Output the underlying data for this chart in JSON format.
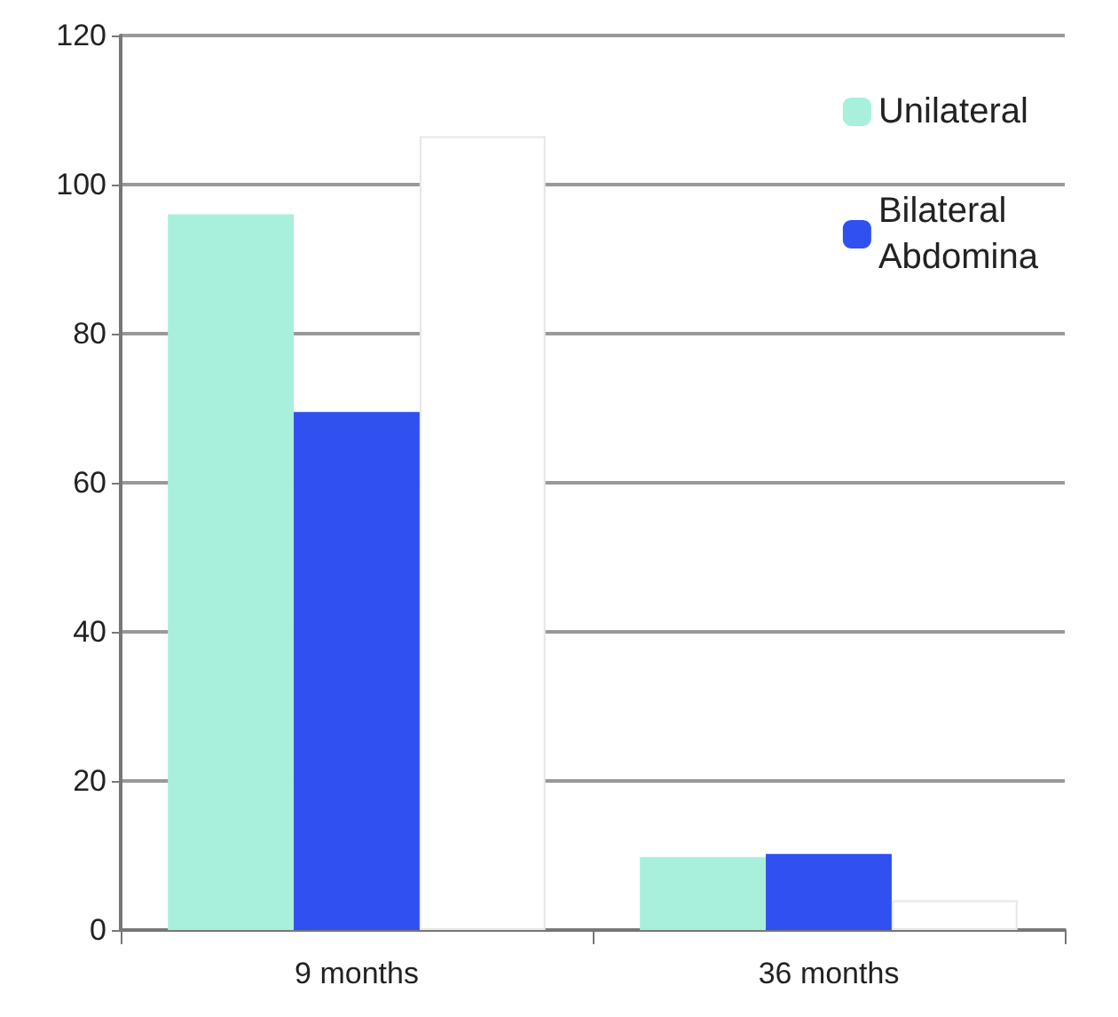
{
  "chart_data": {
    "type": "bar",
    "categories": [
      "9 months",
      "36 months"
    ],
    "series": [
      {
        "name": "Unilateral",
        "color": "#a8f0dc",
        "values": [
          96,
          9.8
        ]
      },
      {
        "name": "Bilateral\nAbdomina",
        "color": "#3050f0",
        "values": [
          69.5,
          10.2
        ]
      },
      {
        "color": "#ffffff",
        "values": [
          106.5,
          4
        ]
      }
    ],
    "ylim": [
      0,
      120
    ],
    "yticks": [
      0,
      20,
      40,
      60,
      80,
      100,
      120
    ],
    "grid": "y",
    "legend": "top right"
  }
}
